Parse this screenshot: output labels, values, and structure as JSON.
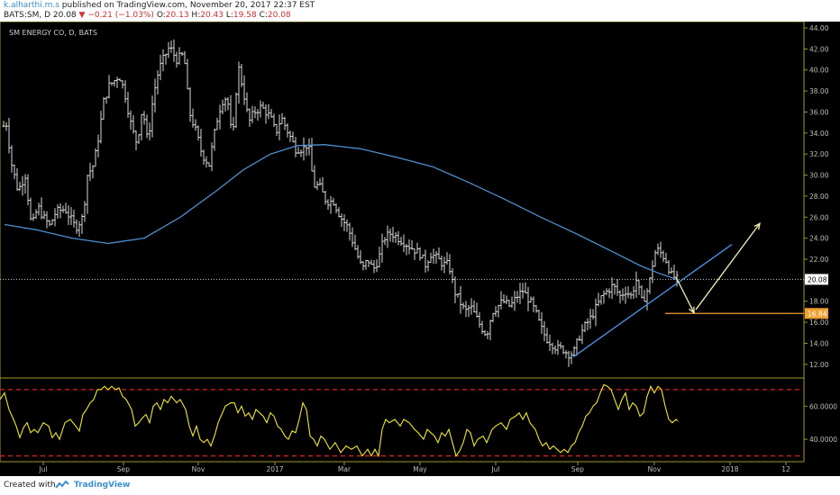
{
  "header": {
    "author": "k.alharthi.m.s",
    "published": "published on TradingView.com, November 20, 2017 22:37 EST",
    "symbol": "BATS:SM, D",
    "last": "20.08",
    "change": "−0.21 (−1.03%)",
    "o_label": "O:",
    "o_value": "20.13",
    "h_label": "H:",
    "h_value": "20.43",
    "l_label": "L:",
    "l_value": "19.58",
    "c_label": "C:",
    "c_value": "20.08"
  },
  "footer": {
    "created": "Created with",
    "brand": "TradingView"
  },
  "chart_data": {
    "type": "ohlc",
    "title": "SM ENERGY CO, D, BATS",
    "price_axis": {
      "ticks": [
        "44.00",
        "42.00",
        "40.00",
        "38.00",
        "36.00",
        "34.00",
        "32.00",
        "30.00",
        "28.00",
        "26.00",
        "24.00",
        "22.00",
        "20.00",
        "18.00",
        "16.00",
        "14.00",
        "12.00"
      ],
      "range": [
        10.7,
        44.6
      ]
    },
    "time_axis": [
      "Jul",
      "Sep",
      "Nov",
      "2017",
      "Mar",
      "May",
      "Jul",
      "Sep",
      "Nov",
      "2018",
      "12"
    ],
    "last_price_label": "20.08",
    "target_label": "16.84",
    "price_path": [
      [
        0,
        33
      ],
      [
        6,
        35.5
      ],
      [
        13,
        31
      ],
      [
        20,
        28.5
      ],
      [
        28,
        30
      ],
      [
        35,
        25
      ],
      [
        42,
        27
      ],
      [
        48,
        26
      ],
      [
        55,
        25.2
      ],
      [
        62,
        26.5
      ],
      [
        72,
        26.8
      ],
      [
        84,
        25
      ],
      [
        92,
        26
      ],
      [
        97,
        30
      ],
      [
        104,
        31
      ],
      [
        110,
        34
      ],
      [
        115,
        37
      ],
      [
        121,
        38.5
      ],
      [
        127,
        39
      ],
      [
        132,
        39.5
      ],
      [
        138,
        38
      ],
      [
        146,
        34.5
      ],
      [
        152,
        33
      ],
      [
        158,
        36.5
      ],
      [
        164,
        33
      ],
      [
        170,
        37.5
      ],
      [
        176,
        40
      ],
      [
        182,
        41.2
      ],
      [
        188,
        42.2
      ],
      [
        196,
        41
      ],
      [
        204,
        41.5
      ],
      [
        210,
        36
      ],
      [
        218,
        34
      ],
      [
        224,
        32
      ],
      [
        232,
        31
      ],
      [
        240,
        35
      ],
      [
        246,
        37
      ],
      [
        252,
        37.5
      ],
      [
        258,
        33
      ],
      [
        264,
        40.5
      ],
      [
        270,
        38
      ],
      [
        276,
        35
      ],
      [
        282,
        36
      ],
      [
        290,
        36.5
      ],
      [
        300,
        35.5
      ],
      [
        306,
        34
      ],
      [
        312,
        35.5
      ],
      [
        320,
        34
      ],
      [
        328,
        32.5
      ],
      [
        336,
        32.5
      ],
      [
        342,
        33
      ],
      [
        348,
        29
      ],
      [
        354,
        29
      ],
      [
        362,
        27.5
      ],
      [
        370,
        27.5
      ],
      [
        378,
        26
      ],
      [
        386,
        25
      ],
      [
        394,
        23
      ],
      [
        402,
        21
      ],
      [
        408,
        22
      ],
      [
        414,
        21
      ],
      [
        420,
        22
      ],
      [
        426,
        24
      ],
      [
        434,
        24.5
      ],
      [
        442,
        24
      ],
      [
        450,
        23.5
      ],
      [
        458,
        23
      ],
      [
        466,
        22.5
      ],
      [
        472,
        21.5
      ],
      [
        478,
        22.5
      ],
      [
        486,
        22
      ],
      [
        492,
        21.5
      ],
      [
        498,
        21.5
      ],
      [
        504,
        19
      ],
      [
        510,
        18
      ],
      [
        516,
        17
      ],
      [
        522,
        17.5
      ],
      [
        528,
        16.5
      ],
      [
        534,
        15.5
      ],
      [
        540,
        14.8
      ],
      [
        546,
        17
      ],
      [
        552,
        17.5
      ],
      [
        558,
        18
      ],
      [
        566,
        17.5
      ],
      [
        574,
        18.5
      ],
      [
        580,
        19
      ],
      [
        588,
        18
      ],
      [
        594,
        17
      ],
      [
        600,
        15.5
      ],
      [
        606,
        14.5
      ],
      [
        612,
        14
      ],
      [
        618,
        13.5
      ],
      [
        624,
        13.5
      ],
      [
        630,
        13
      ],
      [
        636,
        13
      ],
      [
        642,
        14.5
      ],
      [
        648,
        15.5
      ],
      [
        656,
        16.5
      ],
      [
        662,
        17.5
      ],
      [
        668,
        18.5
      ],
      [
        674,
        19
      ],
      [
        680,
        19.5
      ],
      [
        688,
        18.5
      ],
      [
        694,
        19
      ],
      [
        700,
        18.5
      ],
      [
        706,
        20
      ],
      [
        712,
        18
      ],
      [
        716,
        18.5
      ],
      [
        720,
        19.5
      ],
      [
        724,
        21.5
      ],
      [
        728,
        23
      ],
      [
        734,
        22.5
      ],
      [
        740,
        21.8
      ],
      [
        744,
        20.5
      ],
      [
        748,
        20.3
      ],
      [
        751,
        20.08
      ]
    ],
    "ma_path": [
      [
        5,
        25.3
      ],
      [
        40,
        24.8
      ],
      [
        80,
        24
      ],
      [
        120,
        23.5
      ],
      [
        160,
        24
      ],
      [
        200,
        26
      ],
      [
        240,
        28.5
      ],
      [
        270,
        30.5
      ],
      [
        300,
        32
      ],
      [
        330,
        32.8
      ],
      [
        360,
        32.9
      ],
      [
        400,
        32.5
      ],
      [
        440,
        31.7
      ],
      [
        480,
        30.8
      ],
      [
        520,
        29.3
      ],
      [
        560,
        27.7
      ],
      [
        600,
        26
      ],
      [
        640,
        24.4
      ],
      [
        680,
        22.7
      ],
      [
        710,
        21.4
      ],
      [
        730,
        20.7
      ],
      [
        750,
        20.1
      ]
    ],
    "trendline": [
      [
        636,
        12.7
      ],
      [
        812,
        23.4
      ]
    ],
    "horizontal_line": 16.84,
    "arrows": [
      {
        "from": [
          750,
          20.3
        ],
        "to": [
          770,
          16.9
        ]
      },
      {
        "from": [
          772,
          17.2
        ],
        "to": [
          843,
          25.4
        ]
      }
    ],
    "rsi": {
      "axis_ticks": [
        "60.0000",
        "40.0000"
      ],
      "overbought": 70,
      "oversold": 30,
      "range": [
        26.5,
        77
      ],
      "path": [
        [
          0,
          64
        ],
        [
          5,
          68
        ],
        [
          10,
          58
        ],
        [
          15,
          52
        ],
        [
          18,
          48
        ],
        [
          22,
          41
        ],
        [
          26,
          47
        ],
        [
          30,
          50
        ],
        [
          34,
          44
        ],
        [
          38,
          46
        ],
        [
          42,
          44
        ],
        [
          48,
          50
        ],
        [
          54,
          48
        ],
        [
          58,
          41
        ],
        [
          62,
          44
        ],
        [
          66,
          40
        ],
        [
          72,
          50
        ],
        [
          78,
          52
        ],
        [
          84,
          48
        ],
        [
          88,
          45
        ],
        [
          92,
          55
        ],
        [
          96,
          58
        ],
        [
          100,
          62
        ],
        [
          104,
          64
        ],
        [
          108,
          70
        ],
        [
          112,
          70
        ],
        [
          116,
          72
        ],
        [
          120,
          70
        ],
        [
          124,
          72
        ],
        [
          128,
          70
        ],
        [
          132,
          71
        ],
        [
          136,
          66
        ],
        [
          140,
          64
        ],
        [
          146,
          58
        ],
        [
          150,
          48
        ],
        [
          154,
          50
        ],
        [
          158,
          53
        ],
        [
          162,
          55
        ],
        [
          166,
          50
        ],
        [
          170,
          60
        ],
        [
          174,
          62
        ],
        [
          178,
          58
        ],
        [
          182,
          64
        ],
        [
          186,
          62
        ],
        [
          190,
          66
        ],
        [
          196,
          62
        ],
        [
          200,
          64
        ],
        [
          206,
          58
        ],
        [
          210,
          48
        ],
        [
          214,
          42
        ],
        [
          218,
          48
        ],
        [
          222,
          40
        ],
        [
          226,
          38
        ],
        [
          230,
          40
        ],
        [
          234,
          36
        ],
        [
          238,
          42
        ],
        [
          242,
          50
        ],
        [
          246,
          55
        ],
        [
          250,
          60
        ],
        [
          256,
          62
        ],
        [
          260,
          62
        ],
        [
          264,
          56
        ],
        [
          268,
          60
        ],
        [
          272,
          54
        ],
        [
          276,
          56
        ],
        [
          280,
          52
        ],
        [
          284,
          58
        ],
        [
          288,
          56
        ],
        [
          292,
          54
        ],
        [
          296,
          50
        ],
        [
          300,
          56
        ],
        [
          304,
          54
        ],
        [
          308,
          48
        ],
        [
          312,
          46
        ],
        [
          316,
          42
        ],
        [
          320,
          40
        ],
        [
          324,
          45
        ],
        [
          328,
          44
        ],
        [
          332,
          52
        ],
        [
          336,
          62
        ],
        [
          340,
          58
        ],
        [
          344,
          42
        ],
        [
          348,
          40
        ],
        [
          352,
          36
        ],
        [
          356,
          42
        ],
        [
          360,
          40
        ],
        [
          366,
          34
        ],
        [
          372,
          38
        ],
        [
          378,
          32
        ],
        [
          384,
          36
        ],
        [
          390,
          34
        ],
        [
          396,
          36
        ],
        [
          402,
          30
        ],
        [
          408,
          34
        ],
        [
          412,
          30
        ],
        [
          416,
          34
        ],
        [
          420,
          30
        ],
        [
          424,
          46
        ],
        [
          428,
          52
        ],
        [
          432,
          50
        ],
        [
          438,
          52
        ],
        [
          444,
          48
        ],
        [
          448,
          52
        ],
        [
          454,
          50
        ],
        [
          460,
          46
        ],
        [
          464,
          44
        ],
        [
          470,
          40
        ],
        [
          474,
          46
        ],
        [
          478,
          44
        ],
        [
          482,
          42
        ],
        [
          486,
          38
        ],
        [
          490,
          44
        ],
        [
          494,
          42
        ],
        [
          498,
          46
        ],
        [
          502,
          38
        ],
        [
          506,
          30
        ],
        [
          510,
          33
        ],
        [
          514,
          38
        ],
        [
          518,
          46
        ],
        [
          522,
          44
        ],
        [
          526,
          36
        ],
        [
          530,
          40
        ],
        [
          536,
          42
        ],
        [
          540,
          38
        ],
        [
          546,
          46
        ],
        [
          550,
          48
        ],
        [
          556,
          50
        ],
        [
          562,
          46
        ],
        [
          566,
          52
        ],
        [
          572,
          54
        ],
        [
          576,
          56
        ],
        [
          580,
          52
        ],
        [
          584,
          56
        ],
        [
          588,
          50
        ],
        [
          594,
          46
        ],
        [
          598,
          40
        ],
        [
          602,
          36
        ],
        [
          606,
          38
        ],
        [
          610,
          34
        ],
        [
          614,
          36
        ],
        [
          618,
          34
        ],
        [
          622,
          32
        ],
        [
          626,
          34
        ],
        [
          630,
          32
        ],
        [
          634,
          36
        ],
        [
          638,
          38
        ],
        [
          642,
          44
        ],
        [
          646,
          48
        ],
        [
          650,
          54
        ],
        [
          654,
          56
        ],
        [
          658,
          60
        ],
        [
          662,
          62
        ],
        [
          666,
          68
        ],
        [
          670,
          73
        ],
        [
          674,
          72
        ],
        [
          678,
          70
        ],
        [
          682,
          64
        ],
        [
          686,
          58
        ],
        [
          690,
          64
        ],
        [
          694,
          68
        ],
        [
          698,
          58
        ],
        [
          702,
          62
        ],
        [
          706,
          60
        ],
        [
          710,
          54
        ],
        [
          714,
          56
        ],
        [
          718,
          66
        ],
        [
          722,
          72
        ],
        [
          726,
          68
        ],
        [
          730,
          72
        ],
        [
          734,
          70
        ],
        [
          738,
          60
        ],
        [
          742,
          52
        ],
        [
          746,
          50
        ],
        [
          750,
          52
        ],
        [
          752,
          51
        ]
      ]
    }
  }
}
